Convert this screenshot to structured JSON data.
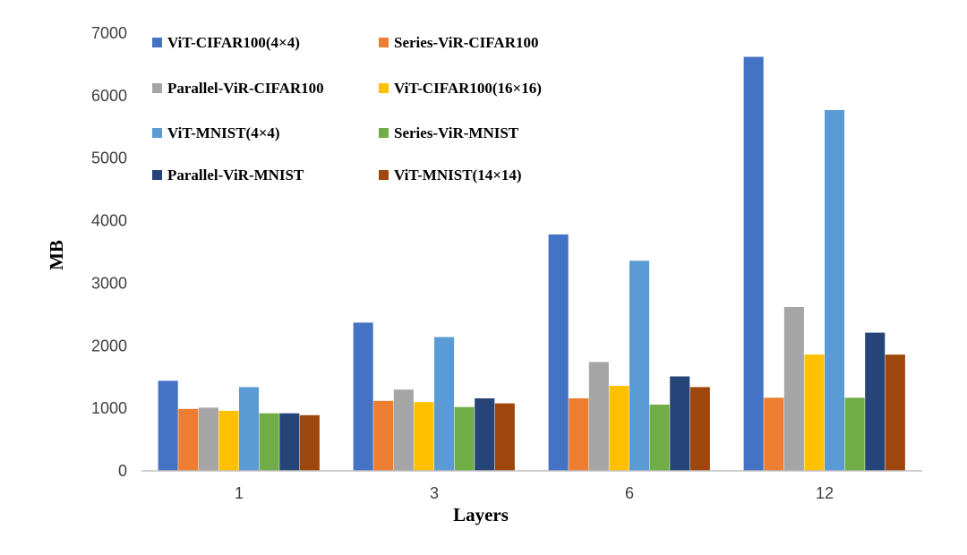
{
  "chart_data": {
    "type": "bar",
    "title": "",
    "xlabel": "Layers",
    "ylabel": "MB",
    "ylim": [
      0,
      7000
    ],
    "yticks": [
      "0",
      "1000",
      "2000",
      "3000",
      "4000",
      "5000",
      "6000",
      "7000"
    ],
    "grid": false,
    "legend_position": "top-left",
    "categories": [
      "1",
      "3",
      "6",
      "12"
    ],
    "series": [
      {
        "name": "ViT-CIFAR100(4×4)",
        "color": "#4472C4",
        "values": [
          1440,
          2370,
          3780,
          6620
        ]
      },
      {
        "name": "Series-ViR-CIFAR100",
        "color": "#ED7D31",
        "values": [
          990,
          1120,
          1160,
          1170
        ]
      },
      {
        "name": "Parallel-ViR-CIFAR100",
        "color": "#A5A5A5",
        "values": [
          1010,
          1300,
          1740,
          2620
        ]
      },
      {
        "name": "ViT-CIFAR100(16×16)",
        "color": "#FFC000",
        "values": [
          960,
          1100,
          1360,
          1860
        ]
      },
      {
        "name": "ViT-MNIST(4×4)",
        "color": "#5B9BD5",
        "values": [
          1340,
          2140,
          3360,
          5770
        ]
      },
      {
        "name": "Series-ViR-MNIST",
        "color": "#70AD47",
        "values": [
          920,
          1020,
          1060,
          1170
        ]
      },
      {
        "name": "Parallel-ViR-MNIST",
        "color": "#264478",
        "values": [
          920,
          1160,
          1510,
          2210
        ]
      },
      {
        "name": "ViT-MNIST(14×14)",
        "color": "#9E480E",
        "values": [
          890,
          1080,
          1340,
          1860
        ]
      }
    ]
  }
}
